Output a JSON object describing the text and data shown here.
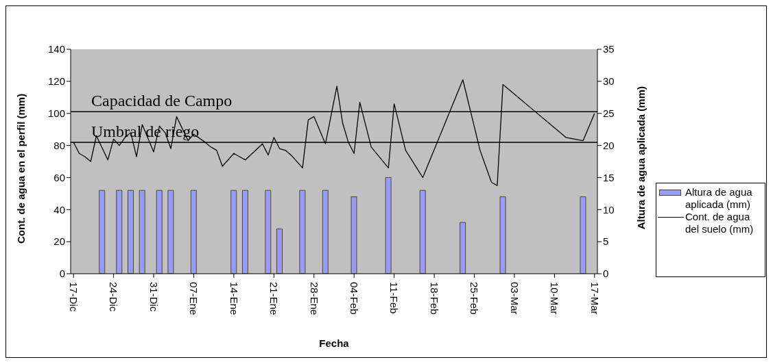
{
  "chart_data": {
    "type": "bar",
    "xlabel": "Fecha",
    "ylabel": "Cont. de agua en el perfil (mm)",
    "y2label": "Altura de agua aplicada (mm)",
    "categories": [
      "17-Dic",
      null,
      null,
      null,
      null,
      null,
      null,
      "24-Dic",
      null,
      null,
      null,
      null,
      null,
      null,
      "31-Dic",
      null,
      null,
      null,
      null,
      null,
      null,
      "07-Ene",
      null,
      null,
      null,
      null,
      null,
      null,
      "14-Ene",
      null,
      null,
      null,
      null,
      null,
      null,
      "21-Ene",
      null,
      null,
      null,
      null,
      null,
      null,
      "28-Ene",
      null,
      null,
      null,
      null,
      null,
      null,
      "04-Feb",
      null,
      null,
      null,
      null,
      null,
      null,
      "11-Feb",
      null,
      null,
      null,
      null,
      null,
      null,
      "18-Feb",
      null,
      null,
      null,
      null,
      null,
      null,
      "25-Feb",
      null,
      null,
      null,
      null,
      null,
      null,
      "03-Mar",
      null,
      null,
      null,
      null,
      null,
      null,
      "10-Mar",
      null,
      null,
      null,
      null,
      null,
      null,
      "17-Mar"
    ],
    "ylim": [
      0,
      140
    ],
    "yticks": [
      0,
      20,
      40,
      60,
      80,
      100,
      120,
      140
    ],
    "y2lim": [
      0,
      35
    ],
    "y2ticks": [
      0,
      5,
      10,
      15,
      20,
      25,
      30,
      35
    ],
    "grid": false,
    "legend": "right",
    "marker": "none",
    "line_style": "solid",
    "ref_lines": [
      {
        "axis": "y",
        "value": 101,
        "label": "Capacidad de Campo",
        "color": "#000000"
      },
      {
        "axis": "y",
        "value": 82,
        "label": "Umbral de riego",
        "color": "#000000"
      }
    ],
    "series": [
      {
        "name": "Altura de agua aplicada (mm)",
        "axis": "y2",
        "color": "#9999ff",
        "values": [
          null,
          null,
          null,
          null,
          null,
          13,
          null,
          null,
          13,
          null,
          13,
          null,
          13,
          null,
          null,
          13,
          null,
          13,
          null,
          null,
          null,
          13,
          null,
          null,
          null,
          null,
          null,
          null,
          13,
          null,
          13,
          null,
          null,
          null,
          13,
          null,
          7,
          null,
          null,
          null,
          13,
          null,
          null,
          null,
          13,
          null,
          null,
          null,
          null,
          12,
          null,
          null,
          null,
          null,
          null,
          15,
          null,
          null,
          null,
          null,
          null,
          13,
          null,
          null,
          null,
          null,
          null,
          null,
          8,
          null,
          null,
          null,
          null,
          null,
          null,
          12,
          null,
          null,
          null,
          null,
          null,
          null,
          null,
          null,
          null,
          null,
          null,
          null,
          null,
          12,
          null,
          null
        ]
      },
      {
        "name": "Cont. de agua del suelo (mm)",
        "type": "line",
        "color": "#000000",
        "values": [
          82,
          75,
          73,
          70,
          86,
          null,
          71,
          84,
          80,
          85,
          88,
          73,
          93,
          null,
          76,
          92,
          88,
          78,
          98,
          null,
          83,
          87,
          null,
          82,
          79,
          77,
          67,
          null,
          75,
          73,
          71,
          null,
          null,
          81,
          74,
          85,
          78,
          77,
          74,
          null,
          66,
          96,
          98,
          null,
          81,
          null,
          117,
          94,
          82,
          75,
          107,
          null,
          79,
          null,
          null,
          66,
          106,
          null,
          77,
          null,
          null,
          60,
          null,
          null,
          null,
          null,
          null,
          null,
          121,
          null,
          null,
          77,
          67,
          57,
          55,
          118,
          null,
          null,
          null,
          null,
          null,
          null,
          null,
          null,
          null,
          null,
          85,
          null,
          null,
          83,
          null,
          100
        ]
      }
    ]
  }
}
